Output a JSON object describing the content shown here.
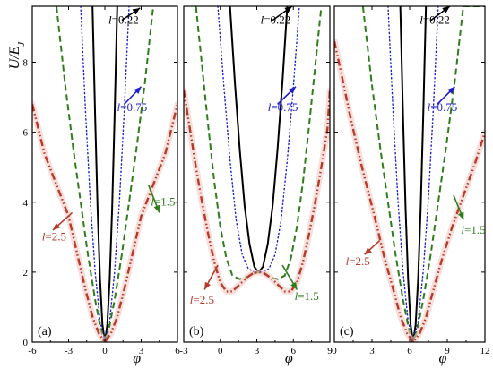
{
  "chart_data": [
    {
      "type": "line",
      "panel_label": "(a)",
      "xlim": [
        -6,
        6
      ],
      "ylim": [
        0,
        9.6
      ],
      "xticks": [
        -6,
        -3,
        0,
        3,
        6
      ],
      "xtick_labels": [
        "-6",
        "-3",
        "0",
        "3",
        "6"
      ],
      "yticks": [
        0,
        2,
        4,
        6,
        8
      ],
      "ytick_labels": [
        "0",
        "2",
        "4",
        "6",
        "8"
      ],
      "ylabel": "U/E_J",
      "series": [
        {
          "name": "l=0.22",
          "color": "#000000",
          "style": "solid",
          "x": [
            -1.02,
            -0.8,
            -0.6,
            -0.4,
            -0.2,
            0,
            0.2,
            0.4,
            0.6,
            0.8,
            1.02
          ],
          "y": [
            9.6,
            6.4,
            3.8,
            1.8,
            0.5,
            0.0,
            0.5,
            1.8,
            3.8,
            6.4,
            9.6
          ]
        },
        {
          "name": "l=0.75",
          "color": "#1f1fd1",
          "style": "dotted",
          "x": [
            -2.0,
            -1.6,
            -1.2,
            -0.8,
            -0.4,
            0,
            0.4,
            0.8,
            1.2,
            1.6,
            2.0
          ],
          "y": [
            9.6,
            6.6,
            4.0,
            2.0,
            0.6,
            0.0,
            0.6,
            2.0,
            4.0,
            6.6,
            9.6
          ]
        },
        {
          "name": "l=1.5",
          "color": "#2e7d1a",
          "style": "dashed",
          "x": [
            -4.0,
            -3.3,
            -2.6,
            -2.0,
            -1.4,
            -0.8,
            -0.3,
            0,
            0.3,
            0.8,
            1.4,
            2.0,
            2.6,
            3.3,
            4.0
          ],
          "y": [
            9.6,
            7.4,
            5.5,
            4.0,
            2.5,
            1.2,
            0.3,
            0.0,
            0.3,
            1.2,
            2.5,
            4.0,
            5.5,
            7.4,
            9.6
          ]
        },
        {
          "name": "l=2.5",
          "color": "#b53a2a",
          "style": "dashdotdot",
          "x": [
            -6.0,
            -5.0,
            -4.0,
            -3.0,
            -2.2,
            -1.6,
            -1.0,
            -0.5,
            0,
            0.5,
            1.0,
            1.6,
            2.2,
            3.0,
            4.0,
            5.0,
            6.0
          ],
          "y": [
            6.8,
            5.4,
            4.5,
            3.6,
            2.4,
            1.5,
            0.7,
            0.25,
            0.0,
            0.25,
            0.7,
            1.5,
            2.4,
            3.6,
            4.5,
            5.4,
            6.8
          ]
        }
      ],
      "annotations": [
        {
          "text": "l=0.22",
          "color": "#000000",
          "tx": 0.3,
          "ty": 9.1,
          "ax": 2.9,
          "ay": 9.55,
          "hx": 1.4,
          "hy": 9.2
        },
        {
          "text": "l=0.75",
          "color": "#1f1fd1",
          "tx": 1.0,
          "ty": 6.6,
          "ax": 3.0,
          "ay": 7.3,
          "hx": 1.6,
          "hy": 6.8
        },
        {
          "text": "l=1.5",
          "color": "#2e7d1a",
          "tx": 3.8,
          "ty": 3.9,
          "ax": 4.5,
          "ay": 3.7,
          "hx": 3.6,
          "hy": 4.5
        },
        {
          "text": "l=2.5",
          "color": "#b53a2a",
          "tx": -5.2,
          "ty": 2.9,
          "ax": -4.3,
          "ay": 3.2,
          "hx": -2.7,
          "hy": 3.7
        }
      ]
    },
    {
      "type": "line",
      "panel_label": "(b)",
      "xlim": [
        -3,
        9
      ],
      "ylim": [
        0,
        9.6
      ],
      "xticks": [
        -3,
        0,
        3,
        6,
        9
      ],
      "xtick_labels": [
        "-3",
        "0",
        "3",
        "6",
        "9"
      ],
      "yticks": [
        0,
        2,
        4,
        6,
        8
      ],
      "ytick_labels": [],
      "series": [
        {
          "name": "l=0.22",
          "color": "#000000",
          "style": "solid",
          "x": [
            0.8,
            1.2,
            1.6,
            2.0,
            2.4,
            2.8,
            3.14,
            3.5,
            3.9,
            4.3,
            4.7,
            5.1,
            5.5
          ],
          "y": [
            9.6,
            7.4,
            5.5,
            3.9,
            2.8,
            2.15,
            2.0,
            2.15,
            2.8,
            3.9,
            5.5,
            7.4,
            9.6
          ]
        },
        {
          "name": "l=0.75",
          "color": "#1f1fd1",
          "style": "dotted",
          "x": [
            -0.2,
            0.3,
            0.8,
            1.3,
            1.8,
            2.3,
            2.8,
            3.14,
            3.5,
            4.0,
            4.5,
            5.0,
            5.5,
            6.0,
            6.5
          ],
          "y": [
            9.6,
            7.3,
            5.2,
            3.5,
            2.5,
            2.1,
            2.0,
            2.0,
            2.0,
            2.1,
            2.5,
            3.5,
            5.2,
            7.3,
            9.6
          ]
        },
        {
          "name": "l=1.5",
          "color": "#2e7d1a",
          "style": "dashed",
          "x": [
            -2.0,
            -1.5,
            -1.0,
            -0.5,
            0.0,
            0.5,
            1.0,
            1.6,
            2.2,
            2.7,
            3.14,
            3.6,
            4.1,
            4.7,
            5.3,
            5.8,
            6.3,
            6.8,
            7.3,
            7.8,
            8.3
          ],
          "y": [
            9.6,
            7.9,
            6.2,
            4.6,
            3.3,
            2.4,
            1.9,
            1.8,
            1.85,
            1.95,
            2.0,
            1.95,
            1.85,
            1.8,
            1.9,
            2.4,
            3.3,
            4.6,
            6.2,
            7.9,
            9.6
          ]
        },
        {
          "name": "l=2.5",
          "color": "#b53a2a",
          "style": "dashdotdot",
          "x": [
            -3.0,
            -2.5,
            -2.0,
            -1.5,
            -1.0,
            -0.5,
            0.0,
            0.5,
            1.0,
            1.6,
            2.2,
            2.7,
            3.14,
            3.6,
            4.1,
            4.7,
            5.3,
            5.8,
            6.3,
            6.8,
            7.3,
            7.8,
            8.3,
            8.8,
            9.0
          ],
          "y": [
            7.2,
            6.1,
            5.0,
            4.0,
            3.1,
            2.3,
            1.7,
            1.45,
            1.45,
            1.65,
            1.85,
            1.97,
            2.0,
            1.97,
            1.85,
            1.65,
            1.45,
            1.45,
            1.7,
            2.3,
            3.1,
            4.0,
            5.0,
            6.1,
            7.2
          ]
        }
      ],
      "annotations": [
        {
          "text": "l=0.22",
          "color": "#000000",
          "tx": 3.3,
          "ty": 9.1,
          "ax": 5.9,
          "ay": 9.6,
          "hx": 4.3,
          "hy": 9.2
        },
        {
          "text": "l=0.75",
          "color": "#1f1fd1",
          "tx": 3.9,
          "ty": 6.6,
          "ax": 6.2,
          "ay": 7.3,
          "hx": 4.7,
          "hy": 6.8
        },
        {
          "text": "l=1.5",
          "color": "#2e7d1a",
          "tx": 6.1,
          "ty": 1.2,
          "ax": 6.3,
          "ay": 1.5,
          "hx": 5.1,
          "hy": 2.2
        },
        {
          "text": "l=2.5",
          "color": "#b53a2a",
          "tx": -2.5,
          "ty": 1.1,
          "ax": -1.3,
          "ay": 1.5,
          "hx": -0.2,
          "hy": 2.2
        }
      ]
    },
    {
      "type": "line",
      "panel_label": "(c)",
      "xlim": [
        0,
        12
      ],
      "ylim": [
        0,
        9.6
      ],
      "xticks": [
        0,
        3,
        6,
        9,
        12
      ],
      "xtick_labels": [
        "0",
        "3",
        "6",
        "9",
        "12"
      ],
      "yticks": [
        0,
        2,
        4,
        6,
        8
      ],
      "ytick_labels": [],
      "series": [
        {
          "name": "l=0.22",
          "color": "#000000",
          "style": "solid",
          "x": [
            5.26,
            5.48,
            5.68,
            5.88,
            6.08,
            6.28,
            6.48,
            6.68,
            6.88,
            7.08,
            7.3
          ],
          "y": [
            9.6,
            6.4,
            3.8,
            1.8,
            0.5,
            0.0,
            0.5,
            1.8,
            3.8,
            6.4,
            9.6
          ]
        },
        {
          "name": "l=0.75",
          "color": "#1f1fd1",
          "style": "dotted",
          "x": [
            4.28,
            4.68,
            5.08,
            5.48,
            5.88,
            6.28,
            6.68,
            7.08,
            7.48,
            7.88,
            8.28
          ],
          "y": [
            9.6,
            6.6,
            4.0,
            2.0,
            0.6,
            0.0,
            0.6,
            2.0,
            4.0,
            6.6,
            9.6
          ]
        },
        {
          "name": "l=1.5",
          "color": "#2e7d1a",
          "style": "dashed",
          "x": [
            2.28,
            2.98,
            3.68,
            4.28,
            4.88,
            5.48,
            5.98,
            6.28,
            6.58,
            7.08,
            7.68,
            8.28,
            8.88,
            9.58,
            10.28,
            11.0,
            12.0
          ],
          "y": [
            9.6,
            7.4,
            5.5,
            4.0,
            2.5,
            1.2,
            0.3,
            0.0,
            0.3,
            1.2,
            2.5,
            4.0,
            5.5,
            7.4,
            9.6,
            9.6,
            9.6
          ]
        },
        {
          "name": "l=2.5",
          "color": "#b53a2a",
          "style": "dashdotdot",
          "x": [
            0.0,
            0.6,
            1.3,
            2.2,
            3.2,
            4.0,
            4.7,
            5.3,
            5.8,
            6.28,
            6.8,
            7.3,
            7.9,
            8.6,
            9.4,
            10.3,
            11.2,
            12.0
          ],
          "y": [
            8.6,
            7.6,
            6.4,
            5.0,
            3.6,
            2.4,
            1.5,
            0.7,
            0.25,
            0.0,
            0.25,
            0.7,
            1.5,
            2.4,
            3.3,
            4.2,
            5.1,
            6.0
          ]
        }
      ],
      "annotations": [
        {
          "text": "l=0.22",
          "color": "#000000",
          "tx": 6.8,
          "ty": 9.1,
          "ax": 9.2,
          "ay": 9.6,
          "hx": 7.7,
          "hy": 9.2
        },
        {
          "text": "l=0.75",
          "color": "#1f1fd1",
          "tx": 7.4,
          "ty": 6.6,
          "ax": 9.6,
          "ay": 7.3,
          "hx": 8.2,
          "hy": 6.8
        },
        {
          "text": "l=1.5",
          "color": "#2e7d1a",
          "tx": 10.1,
          "ty": 3.1,
          "ax": 10.3,
          "ay": 3.5,
          "hx": 9.5,
          "hy": 4.2
        },
        {
          "text": "l=2.5",
          "color": "#b53a2a",
          "tx": 0.9,
          "ty": 2.2,
          "ax": 2.4,
          "ay": 2.5,
          "hx": 3.6,
          "hy": 2.9
        }
      ]
    }
  ],
  "shared": {
    "xlabel": "φ",
    "ylabel": "U/E_J"
  }
}
